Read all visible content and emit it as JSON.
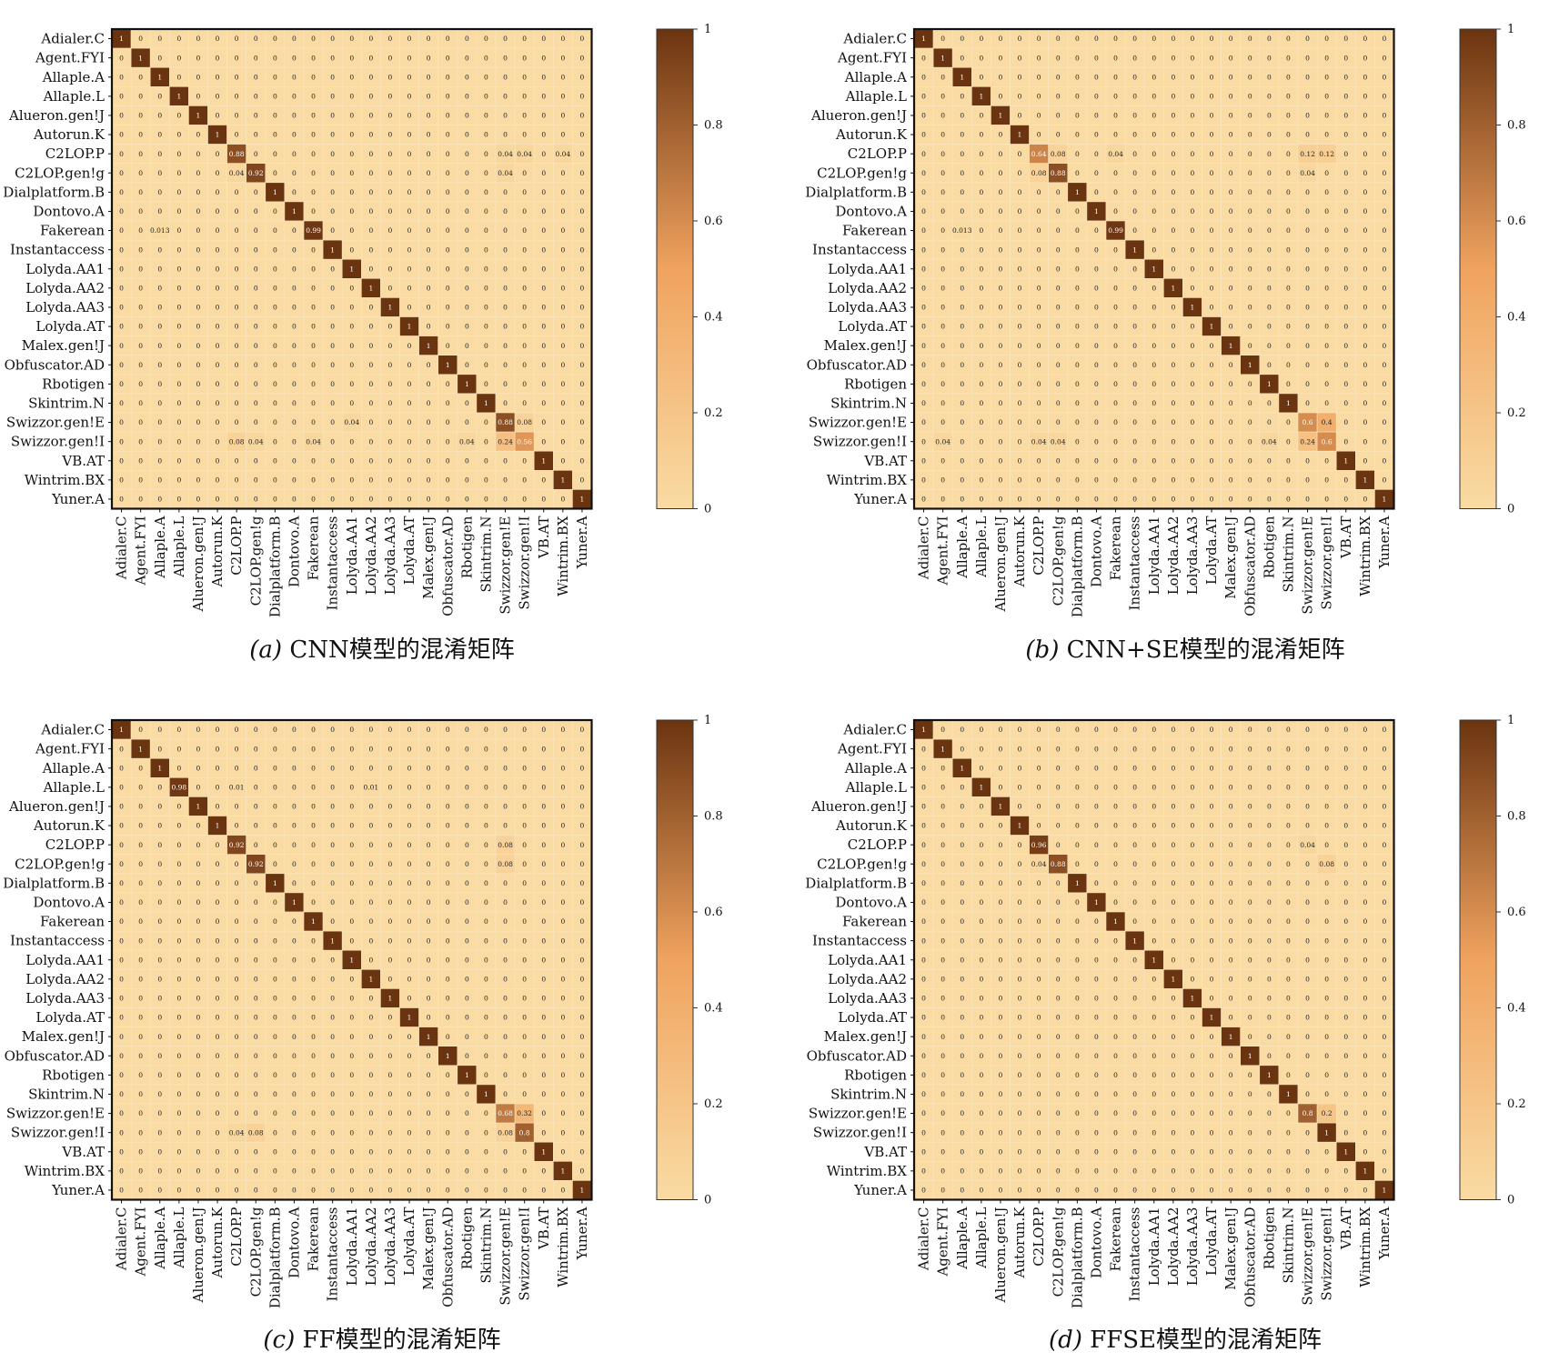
{
  "chart_data": [
    {
      "type": "heatmap",
      "panel_label": "(a)",
      "caption": "CNN模型的混淆矩阵",
      "row_labels": [
        "Adialer.C",
        "Agent.FYI",
        "Allaple.A",
        "Allaple.L",
        "Alueron.gen!J",
        "Autorun.K",
        "C2LOP.P",
        "C2LOP.gen!g",
        "Dialplatform.B",
        "Dontovo.A",
        "Fakerean",
        "Instantaccess",
        "Lolyda.AA1",
        "Lolyda.AA2",
        "Lolyda.AA3",
        "Lolyda.AT",
        "Malex.gen!J",
        "Obfuscator.AD",
        "Rbotigen",
        "Skintrim.N",
        "Swizzor.gen!E",
        "Swizzor.gen!I",
        "VB.AT",
        "Wintrim.BX",
        "Yuner.A"
      ],
      "col_labels": [
        "Adialer.C",
        "Agent.FYI",
        "Allaple.A",
        "Allaple.L",
        "Alueron.gen!J",
        "Autorun.K",
        "C2LOP.P",
        "C2LOP.gen!g",
        "Dialplatform.B",
        "Dontovo.A",
        "Fakerean",
        "Instantaccess",
        "Lolyda.AA1",
        "Lolyda.AA2",
        "Lolyda.AA3",
        "Lolyda.AT",
        "Malex.gen!J",
        "Obfuscator.AD",
        "Rbotigen",
        "Skintrim.N",
        "Swizzor.gen!E",
        "Swizzor.gen!I",
        "VB.AT",
        "Wintrim.BX",
        "Yuner.A"
      ],
      "colorbar_ticks": [
        "0",
        "0.2",
        "0.4",
        "0.6",
        "0.8",
        "1"
      ],
      "value_range": [
        0,
        1
      ],
      "diagonal": [
        "1",
        "1",
        "1",
        "1",
        "1",
        "1",
        "0.88",
        "0.92",
        "1",
        "1",
        "0.99",
        "1",
        "1",
        "1",
        "1",
        "1",
        "1",
        "1",
        "1",
        "1",
        "0.88",
        "0.56",
        "1",
        "1",
        "1"
      ],
      "off_diagonal": [
        {
          "row": 6,
          "col": 20,
          "value": "0.04"
        },
        {
          "row": 6,
          "col": 21,
          "value": "0.04"
        },
        {
          "row": 6,
          "col": 23,
          "value": "0.04"
        },
        {
          "row": 7,
          "col": 6,
          "value": "0.04"
        },
        {
          "row": 7,
          "col": 20,
          "value": "0.04"
        },
        {
          "row": 10,
          "col": 2,
          "value": "0.013"
        },
        {
          "row": 20,
          "col": 12,
          "value": "0.04"
        },
        {
          "row": 20,
          "col": 21,
          "value": "0.08"
        },
        {
          "row": 21,
          "col": 6,
          "value": "0.08"
        },
        {
          "row": 21,
          "col": 7,
          "value": "0.04"
        },
        {
          "row": 21,
          "col": 10,
          "value": "0.04"
        },
        {
          "row": 21,
          "col": 18,
          "value": "0.04"
        },
        {
          "row": 21,
          "col": 20,
          "value": "0.24"
        }
      ]
    },
    {
      "type": "heatmap",
      "panel_label": "(b)",
      "caption": "CNN+SE模型的混淆矩阵",
      "row_labels": [
        "Adialer.C",
        "Agent.FYI",
        "Allaple.A",
        "Allaple.L",
        "Alueron.gen!J",
        "Autorun.K",
        "C2LOP.P",
        "C2LOP.gen!g",
        "Dialplatform.B",
        "Dontovo.A",
        "Fakerean",
        "Instantaccess",
        "Lolyda.AA1",
        "Lolyda.AA2",
        "Lolyda.AA3",
        "Lolyda.AT",
        "Malex.gen!J",
        "Obfuscator.AD",
        "Rbotigen",
        "Skintrim.N",
        "Swizzor.gen!E",
        "Swizzor.gen!I",
        "VB.AT",
        "Wintrim.BX",
        "Yuner.A"
      ],
      "col_labels": [
        "Adialer.C",
        "Agent.FYI",
        "Allaple.A",
        "Allaple.L",
        "Alueron.gen!J",
        "Autorun.K",
        "C2LOP.P",
        "C2LOP.gen!g",
        "Dialplatform.B",
        "Dontovo.A",
        "Fakerean",
        "Instantaccess",
        "Lolyda.AA1",
        "Lolyda.AA2",
        "Lolyda.AA3",
        "Lolyda.AT",
        "Malex.gen!J",
        "Obfuscator.AD",
        "Rbotigen",
        "Skintrim.N",
        "Swizzor.gen!E",
        "Swizzor.gen!I",
        "VB.AT",
        "Wintrim.BX",
        "Yuner.A"
      ],
      "colorbar_ticks": [
        "0",
        "0.2",
        "0.4",
        "0.6",
        "0.8",
        "1"
      ],
      "value_range": [
        0,
        1
      ],
      "diagonal": [
        "1",
        "1",
        "1",
        "1",
        "1",
        "1",
        "0.64",
        "0.88",
        "1",
        "1",
        "0.99",
        "1",
        "1",
        "1",
        "1",
        "1",
        "1",
        "1",
        "1",
        "1",
        "0.6",
        "0.6",
        "1",
        "1",
        "1"
      ],
      "off_diagonal": [
        {
          "row": 6,
          "col": 7,
          "value": "0.08"
        },
        {
          "row": 6,
          "col": 10,
          "value": "0.04"
        },
        {
          "row": 6,
          "col": 20,
          "value": "0.12"
        },
        {
          "row": 6,
          "col": 21,
          "value": "0.12"
        },
        {
          "row": 7,
          "col": 6,
          "value": "0.08"
        },
        {
          "row": 7,
          "col": 20,
          "value": "0.04"
        },
        {
          "row": 10,
          "col": 2,
          "value": "0.013"
        },
        {
          "row": 20,
          "col": 21,
          "value": "0.4"
        },
        {
          "row": 21,
          "col": 1,
          "value": "0.04"
        },
        {
          "row": 21,
          "col": 6,
          "value": "0.04"
        },
        {
          "row": 21,
          "col": 7,
          "value": "0.04"
        },
        {
          "row": 21,
          "col": 18,
          "value": "0.04"
        },
        {
          "row": 21,
          "col": 20,
          "value": "0.24"
        }
      ]
    },
    {
      "type": "heatmap",
      "panel_label": "(c)",
      "caption": "FF模型的混淆矩阵",
      "row_labels": [
        "Adialer.C",
        "Agent.FYI",
        "Allaple.A",
        "Allaple.L",
        "Alueron.gen!J",
        "Autorun.K",
        "C2LOP.P",
        "C2LOP.gen!g",
        "Dialplatform.B",
        "Dontovo.A",
        "Fakerean",
        "Instantaccess",
        "Lolyda.AA1",
        "Lolyda.AA2",
        "Lolyda.AA3",
        "Lolyda.AT",
        "Malex.gen!J",
        "Obfuscator.AD",
        "Rbotigen",
        "Skintrim.N",
        "Swizzor.gen!E",
        "Swizzor.gen!I",
        "VB.AT",
        "Wintrim.BX",
        "Yuner.A"
      ],
      "col_labels": [
        "Adialer.C",
        "Agent.FYI",
        "Allaple.A",
        "Allaple.L",
        "Alueron.gen!J",
        "Autorun.K",
        "C2LOP.P",
        "C2LOP.gen!g",
        "Dialplatform.B",
        "Dontovo.A",
        "Fakerean",
        "Instantaccess",
        "Lolyda.AA1",
        "Lolyda.AA2",
        "Lolyda.AA3",
        "Lolyda.AT",
        "Malex.gen!J",
        "Obfuscator.AD",
        "Rbotigen",
        "Skintrim.N",
        "Swizzor.gen!E",
        "Swizzor.gen!I",
        "VB.AT",
        "Wintrim.BX",
        "Yuner.A"
      ],
      "colorbar_ticks": [
        "0",
        "0.2",
        "0.4",
        "0.6",
        "0.8",
        "1"
      ],
      "value_range": [
        0,
        1
      ],
      "diagonal": [
        "1",
        "1",
        "1",
        "0.98",
        "1",
        "1",
        "0.92",
        "0.92",
        "1",
        "1",
        "1",
        "1",
        "1",
        "1",
        "1",
        "1",
        "1",
        "1",
        "1",
        "1",
        "0.68",
        "0.8",
        "1",
        "1",
        "1"
      ],
      "off_diagonal": [
        {
          "row": 3,
          "col": 6,
          "value": "0.01"
        },
        {
          "row": 3,
          "col": 13,
          "value": "0.01"
        },
        {
          "row": 6,
          "col": 20,
          "value": "0.08"
        },
        {
          "row": 7,
          "col": 20,
          "value": "0.08"
        },
        {
          "row": 20,
          "col": 21,
          "value": "0.32"
        },
        {
          "row": 21,
          "col": 6,
          "value": "0.04"
        },
        {
          "row": 21,
          "col": 7,
          "value": "0.08"
        },
        {
          "row": 21,
          "col": 20,
          "value": "0.08"
        }
      ]
    },
    {
      "type": "heatmap",
      "panel_label": "(d)",
      "caption": "FFSE模型的混淆矩阵",
      "row_labels": [
        "Adialer.C",
        "Agent.FYI",
        "Allaple.A",
        "Allaple.L",
        "Alueron.gen!J",
        "Autorun.K",
        "C2LOP.P",
        "C2LOP.gen!g",
        "Dialplatform.B",
        "Dontovo.A",
        "Fakerean",
        "Instantaccess",
        "Lolyda.AA1",
        "Lolyda.AA2",
        "Lolyda.AA3",
        "Lolyda.AT",
        "Malex.gen!J",
        "Obfuscator.AD",
        "Rbotigen",
        "Skintrim.N",
        "Swizzor.gen!E",
        "Swizzor.gen!I",
        "VB.AT",
        "Wintrim.BX",
        "Yuner.A"
      ],
      "col_labels": [
        "Adialer.C",
        "Agent.FYI",
        "Allaple.A",
        "Allaple.L",
        "Alueron.gen!J",
        "Autorun.K",
        "C2LOP.P",
        "C2LOP.gen!g",
        "Dialplatform.B",
        "Dontovo.A",
        "Fakerean",
        "Instantaccess",
        "Lolyda.AA1",
        "Lolyda.AA2",
        "Lolyda.AA3",
        "Lolyda.AT",
        "Malex.gen!J",
        "Obfuscator.AD",
        "Rbotigen",
        "Skintrim.N",
        "Swizzor.gen!E",
        "Swizzor.gen!I",
        "VB.AT",
        "Wintrim.BX",
        "Yuner.A"
      ],
      "colorbar_ticks": [
        "0",
        "0.2",
        "0.4",
        "0.6",
        "0.8",
        "1"
      ],
      "value_range": [
        0,
        1
      ],
      "diagonal": [
        "1",
        "1",
        "1",
        "1",
        "1",
        "1",
        "0.96",
        "0.88",
        "1",
        "1",
        "1",
        "1",
        "1",
        "1",
        "1",
        "1",
        "1",
        "1",
        "1",
        "1",
        "0.8",
        "1",
        "1",
        "1",
        "1"
      ],
      "off_diagonal": [
        {
          "row": 6,
          "col": 20,
          "value": "0.04"
        },
        {
          "row": 7,
          "col": 6,
          "value": "0.04"
        },
        {
          "row": 7,
          "col": 21,
          "value": "0.08"
        },
        {
          "row": 20,
          "col": 21,
          "value": "0.2"
        }
      ]
    }
  ],
  "colors": {
    "low": "#f9dba3",
    "mid": "#f0a35f",
    "high": "#6b3410",
    "frame": "#111111",
    "text": "#111111"
  }
}
